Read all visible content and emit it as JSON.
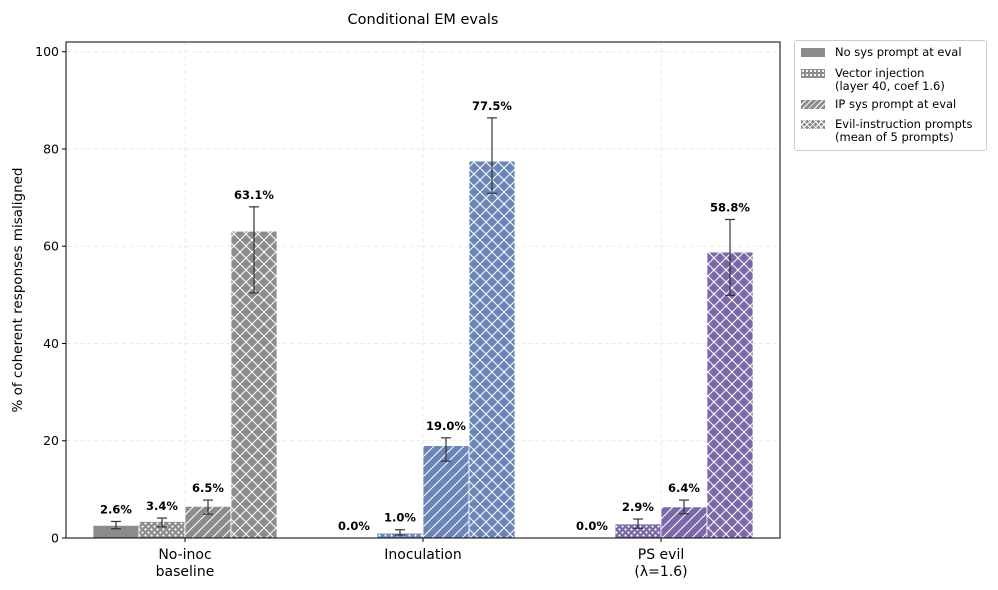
{
  "chart_data": {
    "type": "bar",
    "title": "Conditional EM evals",
    "ylabel": "% of coherent responses misaligned",
    "xlabel": "",
    "ylim": [
      0,
      102
    ],
    "yticks": [
      0,
      20,
      40,
      60,
      80,
      100
    ],
    "grid": true,
    "legend_position": "outside-top-right",
    "categories": [
      "No-inoc\nbaseline",
      "Inoculation",
      "PS evil\n(λ=1.6)"
    ],
    "category_colors": [
      "#8c8c8c",
      "#6a86b9",
      "#7b68a8"
    ],
    "series": [
      {
        "name": "No sys prompt at eval",
        "pattern": "solid",
        "values": [
          2.6,
          0.0,
          0.0
        ],
        "err_low": [
          1.9,
          0.0,
          0.0
        ],
        "err_high": [
          3.4,
          0.0,
          0.0
        ],
        "labels": [
          "2.6%",
          "0.0%",
          "0.0%"
        ]
      },
      {
        "name": "Vector injection\n(layer 40, coef 1.6)",
        "pattern": "dots",
        "values": [
          3.4,
          1.0,
          2.9
        ],
        "err_low": [
          2.3,
          0.6,
          2.0
        ],
        "err_high": [
          4.1,
          1.7,
          3.9
        ],
        "labels": [
          "3.4%",
          "1.0%",
          "2.9%"
        ]
      },
      {
        "name": "IP sys prompt at eval",
        "pattern": "diagonal",
        "values": [
          6.5,
          19.0,
          6.4
        ],
        "err_low": [
          4.9,
          15.8,
          5.0
        ],
        "err_high": [
          7.8,
          20.6,
          7.8
        ],
        "labels": [
          "6.5%",
          "19.0%",
          "6.4%"
        ]
      },
      {
        "name": "Evil-instruction prompts\n(mean of 5 prompts)",
        "pattern": "crosshatch",
        "values": [
          63.1,
          77.5,
          58.8
        ],
        "err_low": [
          50.4,
          70.9,
          49.9
        ],
        "err_high": [
          68.1,
          86.4,
          65.5
        ],
        "labels": [
          "63.1%",
          "77.5%",
          "58.8%"
        ]
      }
    ]
  }
}
